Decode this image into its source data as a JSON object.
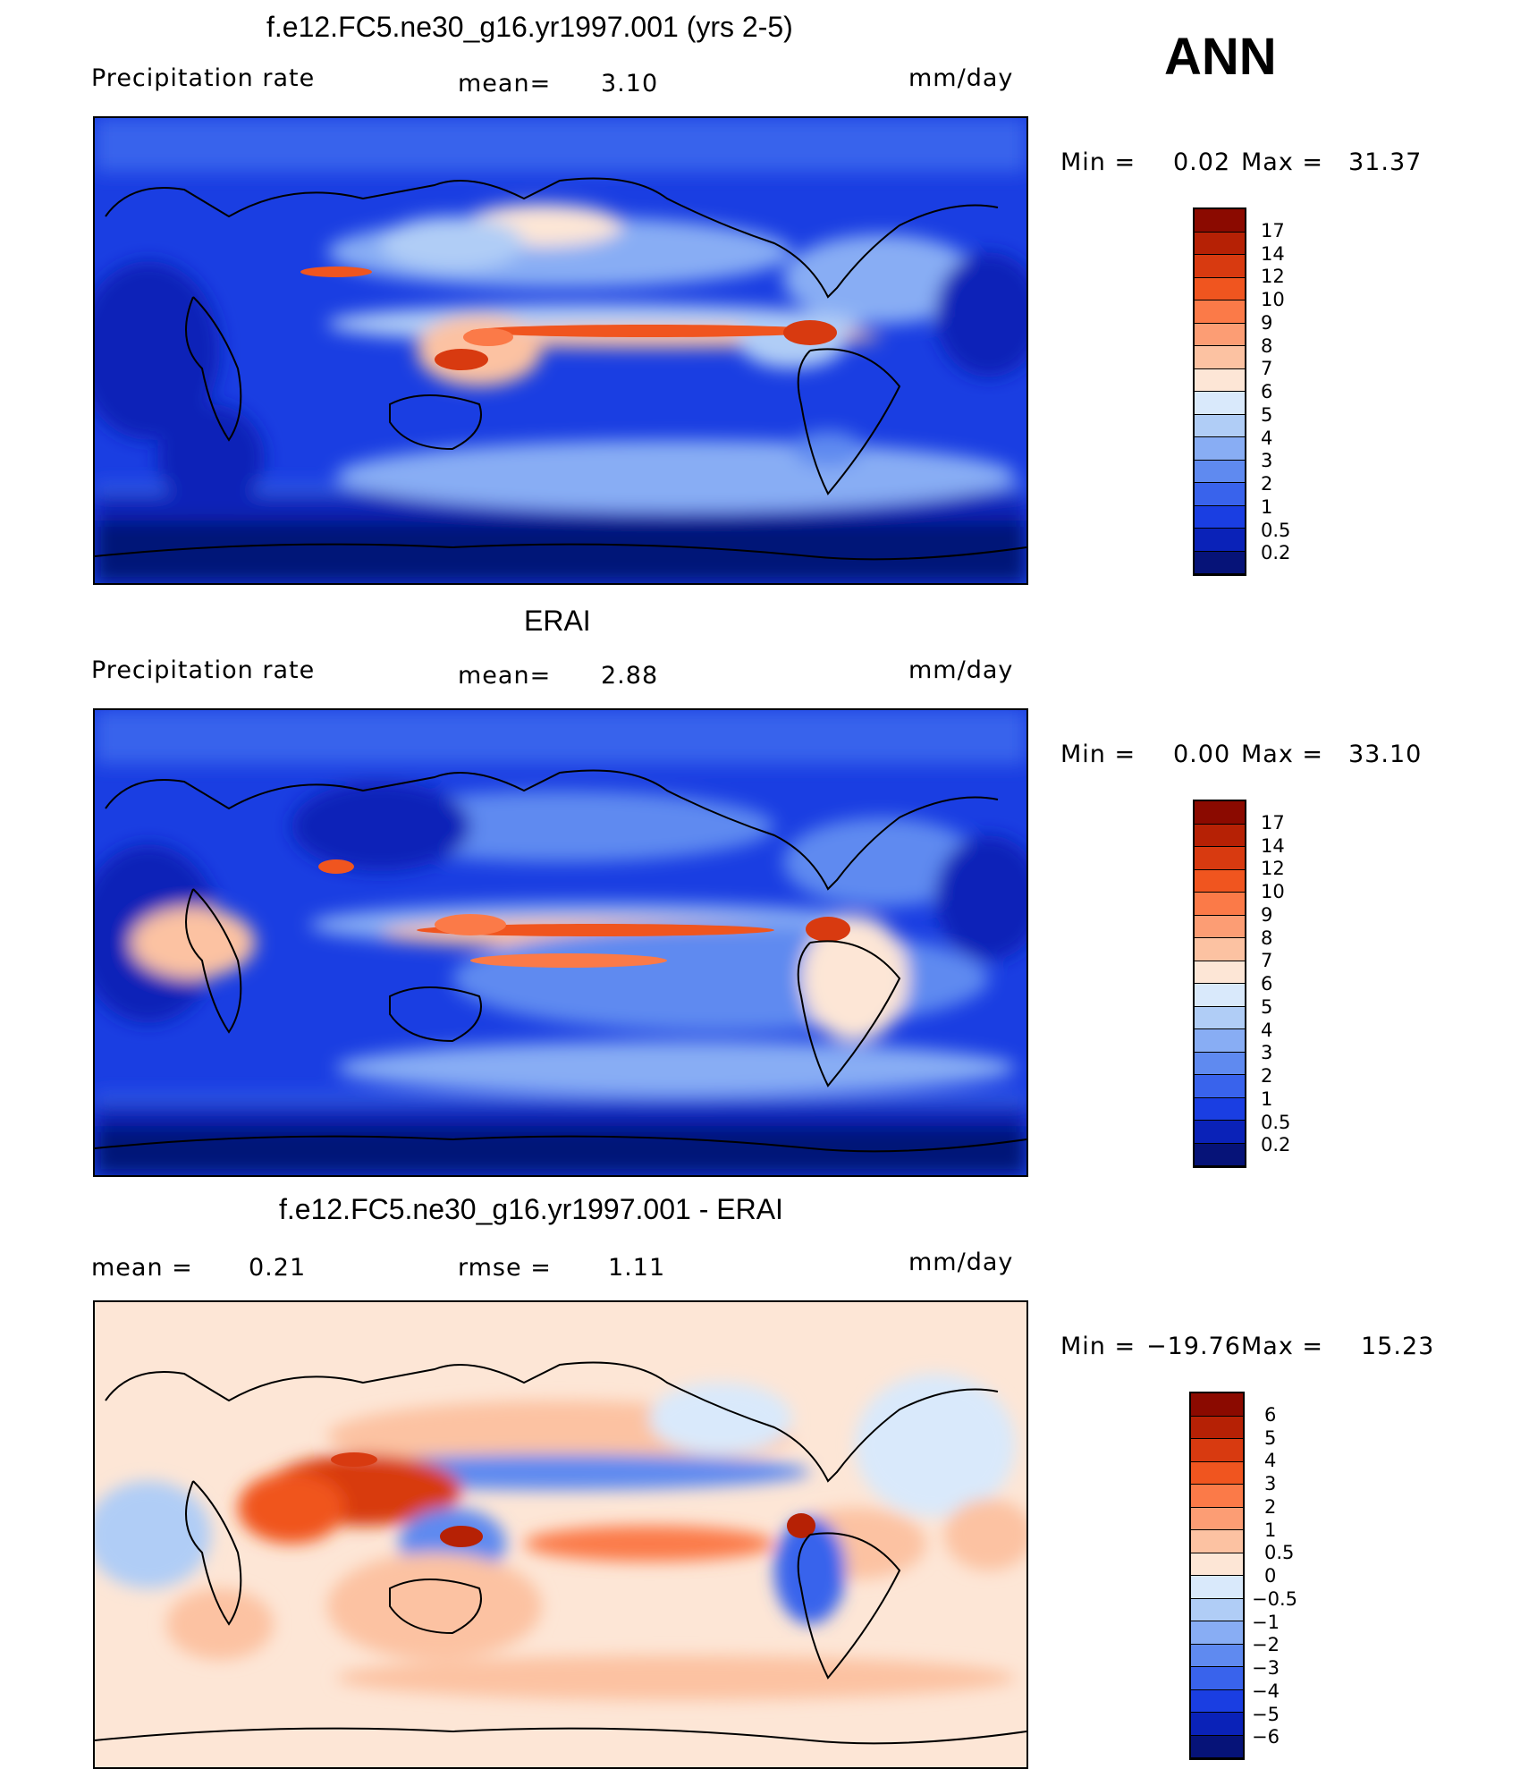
{
  "season": "ANN",
  "panels": [
    {
      "id": "model",
      "title": "f.e12.FC5.ne30_g16.yr1997.001 (yrs 2-5)",
      "left_label": "Precipitation rate",
      "mid_label": "mean=",
      "mid_value": "3.10",
      "units": "mm/day",
      "minmax": {
        "min_label": "Min =",
        "min_value": "0.02",
        "max_label": "Max =",
        "max_value": "31.37"
      },
      "colorbar": {
        "labels": [
          "17",
          "14",
          "12",
          "10",
          "9",
          "8",
          "7",
          "6",
          "5",
          "4",
          "3",
          "2",
          "1",
          "0.5",
          "0.2"
        ],
        "colors": [
          "#8b0a00",
          "#b62105",
          "#d83a10",
          "#f0551f",
          "#fb7a48",
          "#fc9d74",
          "#fcc2a2",
          "#fde6d6",
          "#d9e9fb",
          "#b0cdf6",
          "#88adf4",
          "#5f8af0",
          "#3963ec",
          "#1a3ee2",
          "#0a22b8",
          "#061378"
        ]
      }
    },
    {
      "id": "obs",
      "title": "ERAI",
      "left_label": "Precipitation rate",
      "mid_label": "mean=",
      "mid_value": "2.88",
      "units": "mm/day",
      "minmax": {
        "min_label": "Min =",
        "min_value": "0.00",
        "max_label": "Max =",
        "max_value": "33.10"
      },
      "colorbar": {
        "labels": [
          "17",
          "14",
          "12",
          "10",
          "9",
          "8",
          "7",
          "6",
          "5",
          "4",
          "3",
          "2",
          "1",
          "0.5",
          "0.2"
        ],
        "colors": [
          "#8b0a00",
          "#b62105",
          "#d83a10",
          "#f0551f",
          "#fb7a48",
          "#fc9d74",
          "#fcc2a2",
          "#fde6d6",
          "#d9e9fb",
          "#b0cdf6",
          "#88adf4",
          "#5f8af0",
          "#3963ec",
          "#1a3ee2",
          "#0a22b8",
          "#061378"
        ]
      }
    },
    {
      "id": "diff",
      "title": "f.e12.FC5.ne30_g16.yr1997.001 - ERAI",
      "left_label": "mean =",
      "left_value": "0.21",
      "mid_label": "rmse =",
      "mid_value": "1.11",
      "units": "mm/day",
      "minmax": {
        "min_label": "Min =",
        "min_value": "−19.76",
        "max_label": "Max =",
        "max_value": "15.23"
      },
      "colorbar": {
        "labels": [
          "6",
          "5",
          "4",
          "3",
          "2",
          "1",
          "0.5",
          "0",
          "−0.5",
          "−1",
          "−2",
          "−3",
          "−4",
          "−5",
          "−6"
        ],
        "colors": [
          "#8b0a00",
          "#b62105",
          "#d83a10",
          "#f0551f",
          "#fb7a48",
          "#fc9d74",
          "#fcc2a2",
          "#fde6d6",
          "#d9e9fb",
          "#b0cdf6",
          "#88adf4",
          "#5f8af0",
          "#3963ec",
          "#1a3ee2",
          "#0a22b8",
          "#061378"
        ]
      }
    }
  ],
  "chart_data": [
    {
      "type": "heatmap",
      "title": "f.e12.FC5.ne30_g16.yr1997.001 (yrs 2-5)",
      "variable": "Precipitation rate",
      "units": "mm/day",
      "mean": 3.1,
      "min": 0.02,
      "max": 31.37,
      "contour_levels": [
        0.2,
        0.5,
        1,
        2,
        3,
        4,
        5,
        6,
        7,
        8,
        9,
        10,
        12,
        14,
        17
      ]
    },
    {
      "type": "heatmap",
      "title": "ERAI",
      "variable": "Precipitation rate",
      "units": "mm/day",
      "mean": 2.88,
      "min": 0.0,
      "max": 33.1,
      "contour_levels": [
        0.2,
        0.5,
        1,
        2,
        3,
        4,
        5,
        6,
        7,
        8,
        9,
        10,
        12,
        14,
        17
      ]
    },
    {
      "type": "heatmap",
      "title": "f.e12.FC5.ne30_g16.yr1997.001 - ERAI",
      "units": "mm/day",
      "mean": 0.21,
      "rmse": 1.11,
      "min": -19.76,
      "max": 15.23,
      "contour_levels": [
        -6,
        -5,
        -4,
        -3,
        -2,
        -1,
        -0.5,
        0,
        0.5,
        1,
        2,
        3,
        4,
        5,
        6
      ]
    }
  ]
}
